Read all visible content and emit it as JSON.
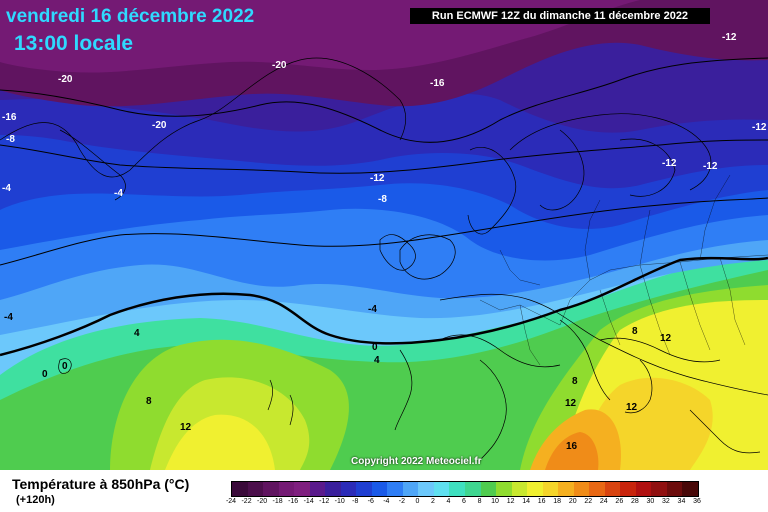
{
  "header": {
    "date_line": "vendredi 16 décembre 2022",
    "time_line": "13:00 locale",
    "run_info": "Run ECMWF 12Z du dimanche 11 décembre 2022"
  },
  "copyright": "Copyright 2022 Meteociel.fr",
  "legend": {
    "title": "Température à 850hPa (°C)",
    "subtitle": "(+120h)",
    "ticks": [
      "-24",
      "-22",
      "-20",
      "-18",
      "-16",
      "-14",
      "-12",
      "-10",
      "-8",
      "-6",
      "-4",
      "-2",
      "0",
      "2",
      "4",
      "6",
      "8",
      "10",
      "12",
      "14",
      "16",
      "18",
      "20",
      "22",
      "24",
      "26",
      "28",
      "30",
      "32",
      "34",
      "36"
    ],
    "colors": [
      "#3a0a3a",
      "#4c0f4c",
      "#601460",
      "#741a74",
      "#7f1f7f",
      "#5a1a8c",
      "#3a1f9c",
      "#2b2bb8",
      "#1f3fd2",
      "#1a5ae8",
      "#2f7ef5",
      "#4fa6f7",
      "#6cc8fb",
      "#5fe0f0",
      "#3fe0c0",
      "#3fd690",
      "#4fcc4f",
      "#8fdc2f",
      "#c8e82f",
      "#f0f030",
      "#f5d52a",
      "#f5b020",
      "#f08c18",
      "#e86814",
      "#d84410",
      "#c8240c",
      "#b01010",
      "#901010",
      "#6c0c0c",
      "#480808"
    ]
  },
  "map_labels": [
    {
      "text": "-12",
      "color": "#000"
    },
    {
      "text": "-20",
      "color": "#000"
    },
    {
      "text": "-20",
      "color": "#000"
    },
    {
      "text": "-16",
      "color": "#000"
    },
    {
      "text": "-20",
      "color": "#000"
    },
    {
      "text": "-16",
      "color": "#000"
    },
    {
      "text": "-8",
      "color": "#000"
    },
    {
      "text": "-12",
      "color": "#000"
    },
    {
      "text": "-12",
      "color": "#000"
    },
    {
      "text": "-12",
      "color": "#000"
    },
    {
      "text": "-12",
      "color": "#000"
    },
    {
      "text": "-8",
      "color": "#000"
    },
    {
      "text": "-4",
      "color": "#000"
    },
    {
      "text": "-4",
      "color": "#000"
    },
    {
      "text": "-4",
      "color": "#000"
    },
    {
      "text": "-4",
      "color": "#000"
    },
    {
      "text": "0",
      "color": "#000"
    },
    {
      "text": "0",
      "color": "#000"
    },
    {
      "text": "0",
      "color": "#000"
    },
    {
      "text": "4",
      "color": "#000"
    },
    {
      "text": "4",
      "color": "#000"
    },
    {
      "text": "8",
      "color": "#000"
    },
    {
      "text": "8",
      "color": "#000"
    },
    {
      "text": "8",
      "color": "#000"
    },
    {
      "text": "12",
      "color": "#000"
    },
    {
      "text": "12",
      "color": "#000"
    },
    {
      "text": "12",
      "color": "#000"
    },
    {
      "text": "12",
      "color": "#000"
    },
    {
      "text": "16",
      "color": "#000"
    }
  ]
}
